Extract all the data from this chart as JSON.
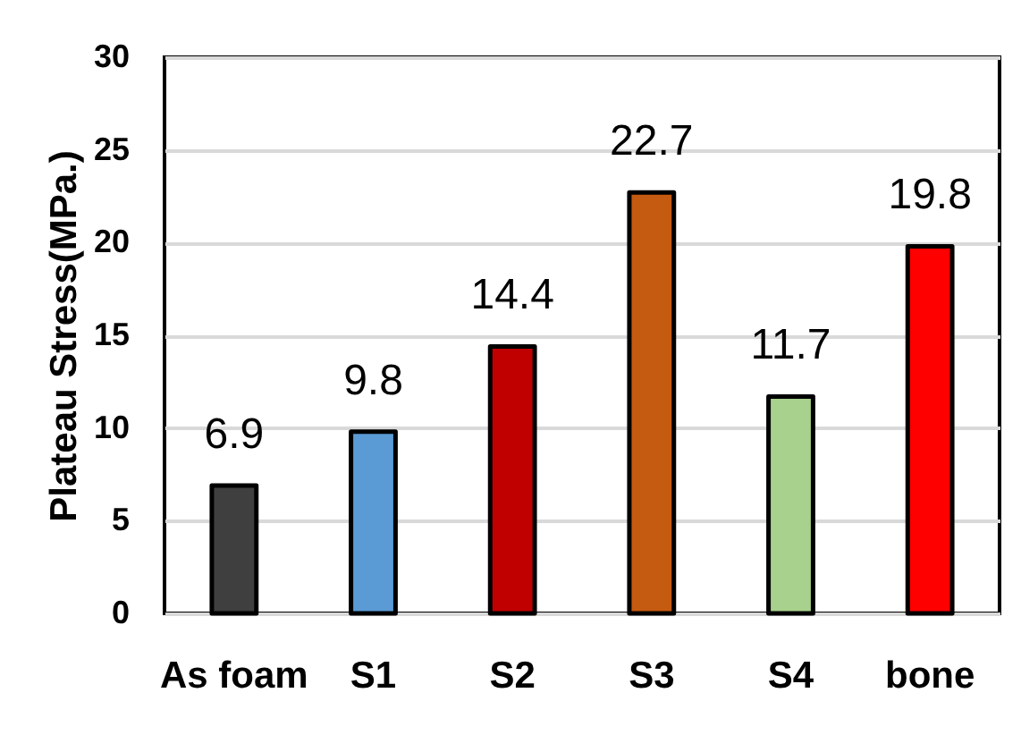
{
  "chart_data": {
    "type": "bar",
    "ylabel": "Plateau Stress(MPa.)",
    "categories": [
      "As foam",
      "S1",
      "S2",
      "S3",
      "S4",
      "bone"
    ],
    "values": [
      6.9,
      9.8,
      14.4,
      22.7,
      11.7,
      19.8
    ],
    "colors": [
      "#3f3f3f",
      "#5b9bd5",
      "#c00000",
      "#c55a11",
      "#a9d18e",
      "#ff0000"
    ],
    "ylim": [
      0,
      30
    ],
    "yticks": [
      0,
      5,
      10,
      15,
      20,
      25,
      30
    ],
    "grid": "y",
    "data_labels": true
  }
}
